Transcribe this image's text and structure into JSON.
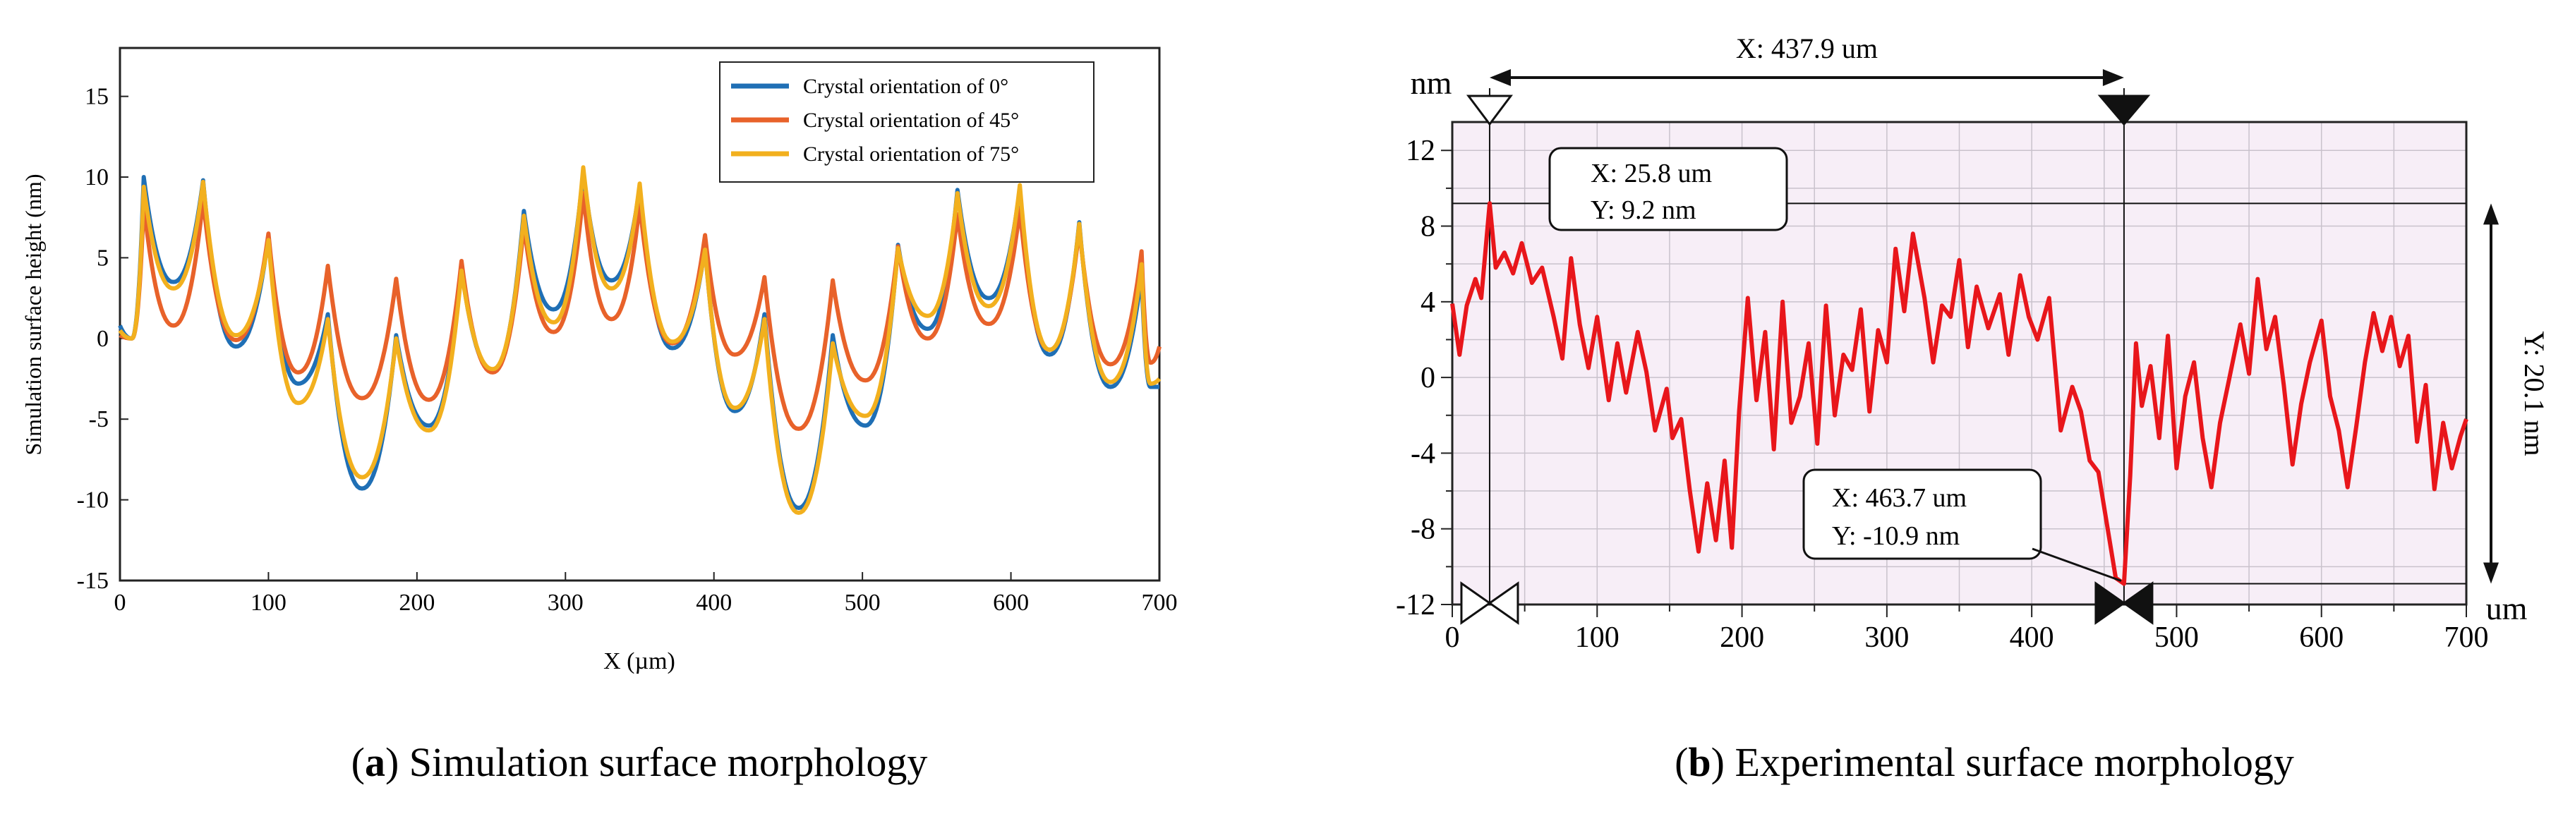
{
  "chart_data": [
    {
      "id": "a",
      "type": "line",
      "panel_label": "a",
      "caption": "Simulation surface morphology",
      "xlabel": "X (µm)",
      "ylabel": "Simulation surface height (nm)",
      "xlim": [
        0,
        700
      ],
      "ylim": [
        -15,
        18
      ],
      "xticks": [
        0,
        100,
        200,
        300,
        400,
        500,
        600,
        700
      ],
      "yticks": [
        -15,
        -10,
        -5,
        0,
        5,
        10,
        15
      ],
      "legend_position": "top-right",
      "peaks_x": [
        0,
        16,
        56,
        100,
        140,
        186,
        230,
        272,
        312,
        350,
        394,
        434,
        480,
        524,
        564,
        606,
        646,
        688,
        700
      ],
      "series": [
        {
          "name": "Crystal orientation of 0°",
          "color": "#1f6fb5",
          "peaks": [
            0.8,
            10.0,
            9.8,
            6.3,
            1.5,
            0.2,
            4.3,
            7.9,
            10.3,
            9.4,
            5.6,
            1.5,
            0.2,
            5.8,
            9.2,
            9.3,
            7.2,
            4.0,
            -3.0
          ],
          "valleys": [
            0.0,
            3.5,
            -0.5,
            -2.8,
            -9.3,
            -5.4,
            -2.0,
            1.8,
            3.6,
            -0.6,
            -4.5,
            -10.5,
            -5.4,
            0.6,
            2.5,
            -1.0,
            -3.0,
            -3.0
          ]
        },
        {
          "name": "Crystal orientation of 45°",
          "color": "#e8622a",
          "peaks": [
            0.2,
            8.3,
            8.6,
            6.5,
            4.5,
            3.7,
            4.8,
            7.0,
            9.0,
            8.3,
            6.4,
            3.8,
            3.6,
            5.7,
            7.7,
            8.0,
            6.8,
            5.4,
            -0.5
          ],
          "valleys": [
            0.0,
            0.8,
            -0.1,
            -2.1,
            -3.7,
            -3.8,
            -2.1,
            0.4,
            1.2,
            -0.3,
            -1.0,
            -5.6,
            -2.6,
            0.0,
            0.9,
            -0.7,
            -1.6,
            -1.5
          ]
        },
        {
          "name": "Crystal orientation of 75°",
          "color": "#f2b01e",
          "peaks": [
            0.5,
            9.4,
            9.7,
            6.1,
            1.2,
            0.0,
            4.2,
            7.6,
            10.6,
            9.6,
            5.5,
            1.2,
            -0.3,
            5.6,
            9.0,
            9.5,
            7.1,
            4.6,
            -2.5
          ],
          "valleys": [
            0.0,
            3.1,
            0.2,
            -4.0,
            -8.6,
            -5.7,
            -1.9,
            1.0,
            3.1,
            -0.2,
            -4.3,
            -10.8,
            -4.8,
            1.4,
            2.0,
            -0.7,
            -2.7,
            -2.8
          ]
        }
      ]
    },
    {
      "id": "b",
      "type": "line",
      "panel_label": "b",
      "caption": "Experimental surface morphology",
      "x_unit": "um",
      "y_unit": "nm",
      "xlim": [
        0,
        700
      ],
      "ylim": [
        -12,
        13.5
      ],
      "xticks": [
        0,
        100,
        200,
        300,
        400,
        500,
        600,
        700
      ],
      "yticks": [
        -12,
        -8,
        -4,
        0,
        4,
        8,
        12
      ],
      "ytick_labels": [
        "-12",
        "-8",
        "-4",
        "0",
        "4",
        "8",
        "12"
      ],
      "line_color": "#e8161b",
      "plot_background": "#f7eef7",
      "keypoints": [
        [
          0,
          3.9
        ],
        [
          5,
          1.2
        ],
        [
          10,
          3.8
        ],
        [
          16,
          5.2
        ],
        [
          20,
          4.2
        ],
        [
          25.8,
          9.2
        ],
        [
          30,
          5.8
        ],
        [
          36,
          6.6
        ],
        [
          42,
          5.5
        ],
        [
          48,
          7.1
        ],
        [
          55,
          5.0
        ],
        [
          62,
          5.8
        ],
        [
          70,
          3.2
        ],
        [
          76,
          1.0
        ],
        [
          82,
          6.3
        ],
        [
          88,
          2.8
        ],
        [
          94,
          0.5
        ],
        [
          100,
          3.2
        ],
        [
          108,
          -1.2
        ],
        [
          114,
          1.8
        ],
        [
          120,
          -0.8
        ],
        [
          128,
          2.4
        ],
        [
          134,
          0.3
        ],
        [
          140,
          -2.8
        ],
        [
          148,
          -0.6
        ],
        [
          152,
          -3.2
        ],
        [
          158,
          -2.2
        ],
        [
          164,
          -6.0
        ],
        [
          170,
          -9.2
        ],
        [
          176,
          -5.6
        ],
        [
          182,
          -8.6
        ],
        [
          188,
          -4.4
        ],
        [
          193,
          -9.0
        ],
        [
          198,
          -1.8
        ],
        [
          204,
          4.2
        ],
        [
          210,
          -1.2
        ],
        [
          216,
          2.4
        ],
        [
          222,
          -3.8
        ],
        [
          228,
          4.0
        ],
        [
          234,
          -2.4
        ],
        [
          240,
          -1.0
        ],
        [
          246,
          1.8
        ],
        [
          252,
          -3.5
        ],
        [
          258,
          3.8
        ],
        [
          264,
          -2.0
        ],
        [
          270,
          1.2
        ],
        [
          276,
          0.4
        ],
        [
          282,
          3.6
        ],
        [
          288,
          -1.8
        ],
        [
          294,
          2.5
        ],
        [
          300,
          0.8
        ],
        [
          306,
          6.8
        ],
        [
          312,
          3.5
        ],
        [
          318,
          7.6
        ],
        [
          326,
          4.2
        ],
        [
          332,
          0.8
        ],
        [
          338,
          3.8
        ],
        [
          344,
          3.2
        ],
        [
          350,
          6.2
        ],
        [
          356,
          1.6
        ],
        [
          362,
          4.8
        ],
        [
          370,
          2.6
        ],
        [
          378,
          4.4
        ],
        [
          384,
          1.2
        ],
        [
          392,
          5.4
        ],
        [
          398,
          3.2
        ],
        [
          404,
          2.0
        ],
        [
          412,
          4.2
        ],
        [
          420,
          -2.8
        ],
        [
          428,
          -0.5
        ],
        [
          434,
          -1.8
        ],
        [
          440,
          -4.4
        ],
        [
          446,
          -5.0
        ],
        [
          452,
          -7.8
        ],
        [
          458,
          -10.6
        ],
        [
          463.7,
          -10.9
        ],
        [
          468,
          -5.2
        ],
        [
          472,
          1.8
        ],
        [
          476,
          -1.5
        ],
        [
          482,
          0.6
        ],
        [
          488,
          -3.2
        ],
        [
          494,
          2.2
        ],
        [
          500,
          -4.8
        ],
        [
          506,
          -1.0
        ],
        [
          512,
          0.8
        ],
        [
          518,
          -3.2
        ],
        [
          524,
          -5.8
        ],
        [
          530,
          -2.4
        ],
        [
          536,
          -0.2
        ],
        [
          544,
          2.8
        ],
        [
          550,
          0.2
        ],
        [
          556,
          5.2
        ],
        [
          562,
          1.5
        ],
        [
          568,
          3.2
        ],
        [
          574,
          -0.4
        ],
        [
          580,
          -4.6
        ],
        [
          586,
          -1.4
        ],
        [
          592,
          0.8
        ],
        [
          600,
          3.0
        ],
        [
          606,
          -1.0
        ],
        [
          612,
          -2.8
        ],
        [
          618,
          -5.8
        ],
        [
          624,
          -2.6
        ],
        [
          630,
          0.8
        ],
        [
          636,
          3.4
        ],
        [
          642,
          1.4
        ],
        [
          648,
          3.2
        ],
        [
          654,
          0.6
        ],
        [
          660,
          2.2
        ],
        [
          666,
          -3.4
        ],
        [
          672,
          -0.4
        ],
        [
          678,
          -5.9
        ],
        [
          684,
          -2.4
        ],
        [
          690,
          -4.8
        ],
        [
          696,
          -3.1
        ],
        [
          700,
          -2.2
        ]
      ],
      "annotations": {
        "x_span": {
          "label": "X: 437.9 um",
          "from": 25.8,
          "to": 463.7
        },
        "y_span": {
          "label": "Y: 20.1 nm",
          "from": -10.9,
          "to": 9.2
        },
        "max_point": {
          "x": 25.8,
          "y": 9.2,
          "label_x": "X: 25.8 um",
          "label_y": "Y: 9.2 nm"
        },
        "min_point": {
          "x": 463.7,
          "y": -10.9,
          "label_x": "X: 463.7 um",
          "label_y": "Y: -10.9 nm"
        }
      }
    }
  ]
}
